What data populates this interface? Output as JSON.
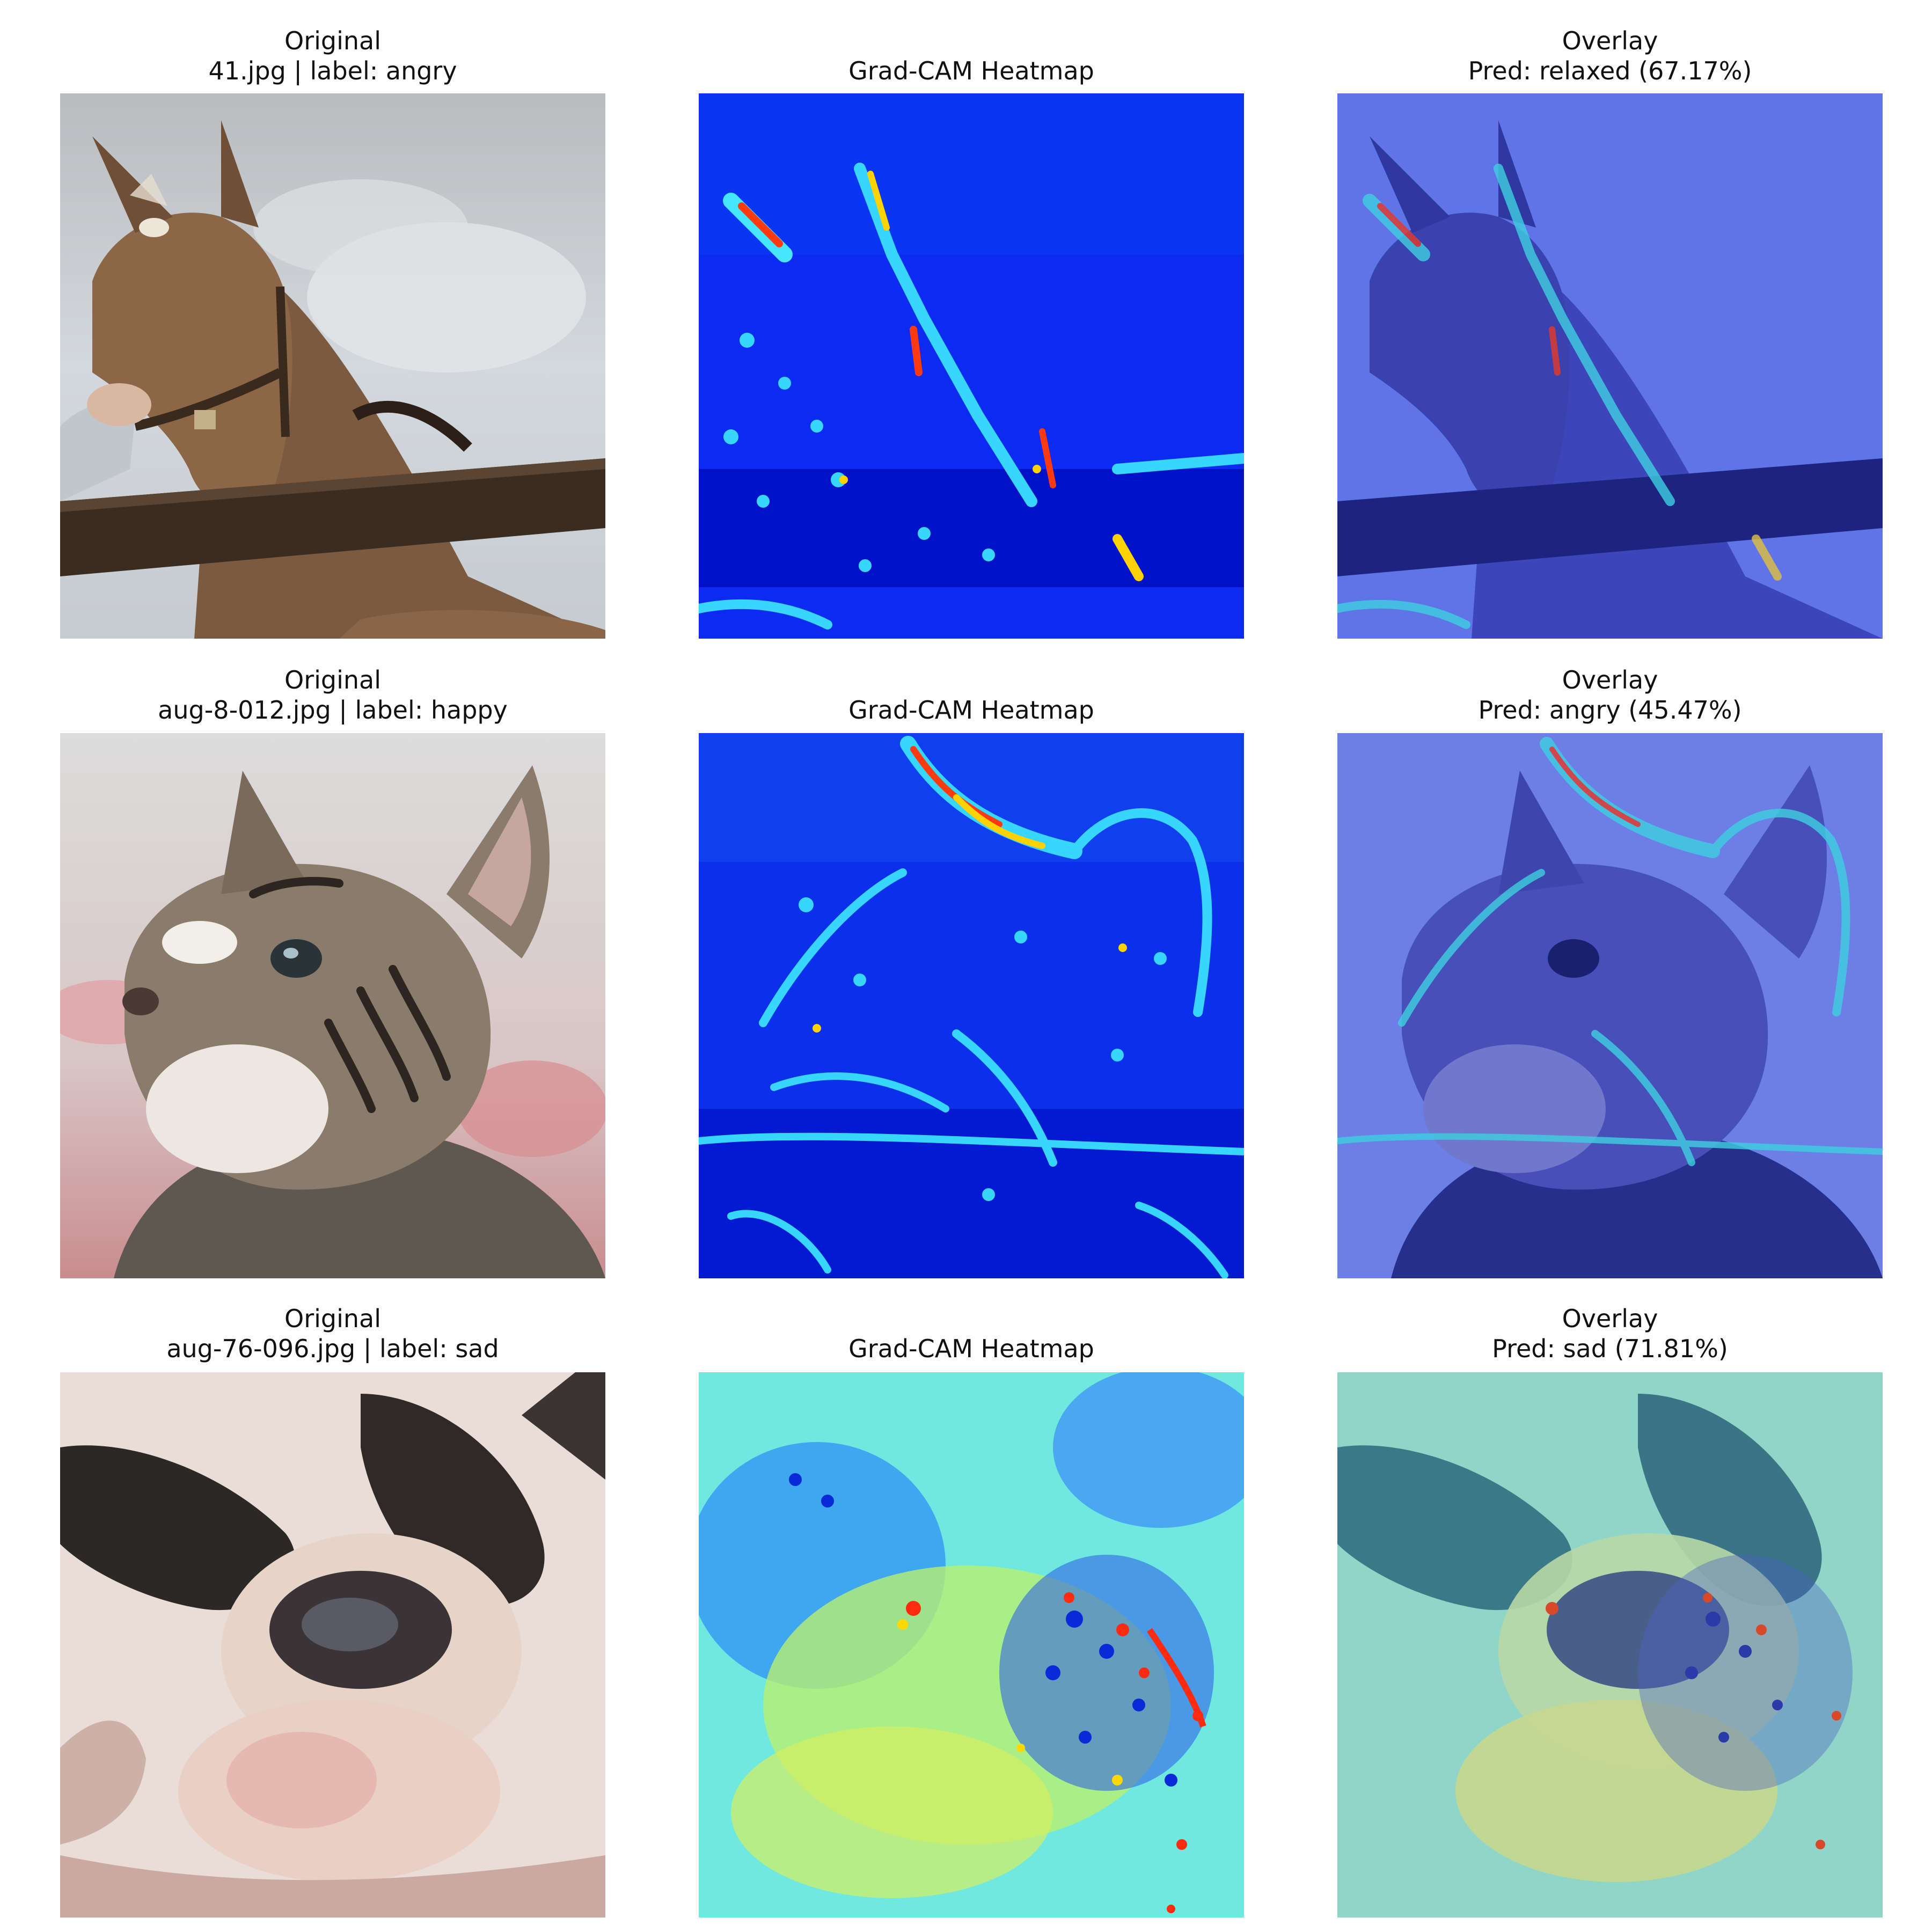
{
  "rows": [
    {
      "original": {
        "title": "Original",
        "subtitle": "41.jpg | label: angry"
      },
      "heatmap": {
        "title": "Grad-CAM Heatmap"
      },
      "overlay": {
        "title": "Overlay",
        "subtitle": "Pred: relaxed (67.17%)"
      }
    },
    {
      "original": {
        "title": "Original",
        "subtitle": "aug-8-012.jpg | label: happy"
      },
      "heatmap": {
        "title": "Grad-CAM Heatmap"
      },
      "overlay": {
        "title": "Overlay",
        "subtitle": "Pred: angry (45.47%)"
      }
    },
    {
      "original": {
        "title": "Original",
        "subtitle": "aug-76-096.jpg | label: sad"
      },
      "heatmap": {
        "title": "Grad-CAM Heatmap"
      },
      "overlay": {
        "title": "Overlay",
        "subtitle": "Pred: sad (71.81%)"
      }
    }
  ],
  "colors": {
    "background": "#ffffff",
    "text": "#111111",
    "heat_low": "#0000d8",
    "heat_mid": "#38d8ff",
    "heat_high": "#ff2a00",
    "overlay_tint": "#4d5fe0"
  }
}
